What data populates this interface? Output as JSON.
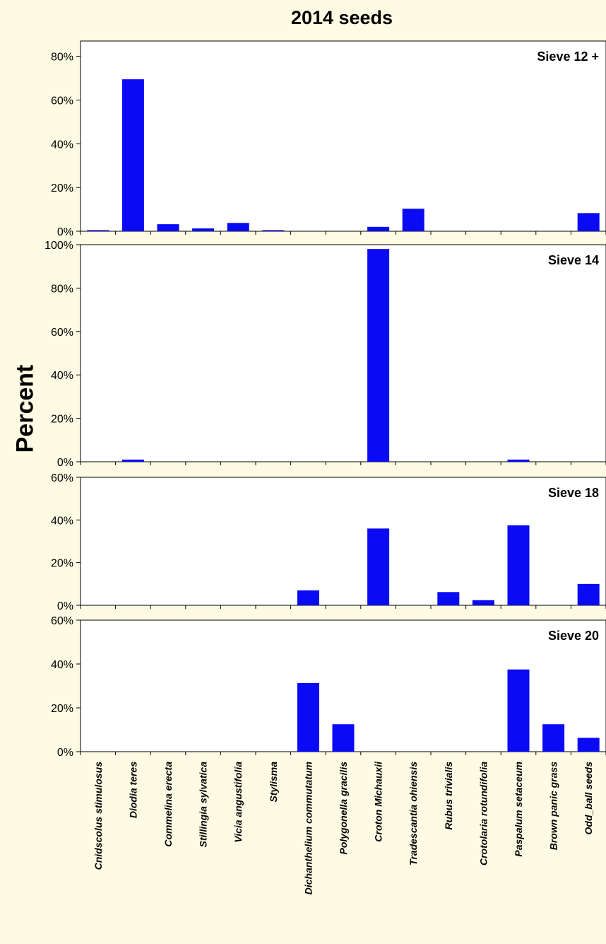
{
  "chart_data": {
    "type": "bar",
    "title": "2014 seeds",
    "ylabel": "Percent",
    "categories": [
      "Cnidscolus stimulosus",
      "Diodia teres",
      "Commelina erecta",
      "Stillingia sylvatica",
      "Vicia angustifolia",
      "Stylisma",
      "Dichanthelium commutatum",
      "Polygonella gracilis",
      "Croton Michauxii",
      "Tradescantia ohiensis",
      "Rubus trivialis",
      "Crotolaria rotundifolia",
      "Paspalum setaceum",
      "Brown panic grass",
      "Odd_ball seeds"
    ],
    "bar_color": "#0a0af5",
    "panels": [
      {
        "name": "Sieve 12 +",
        "ylim": [
          0,
          87
        ],
        "yticks": [
          0,
          20,
          40,
          60,
          80
        ],
        "tick_labels": [
          "0%",
          "20%",
          "40%",
          "60%",
          "80%"
        ],
        "values": [
          0.5,
          69.5,
          3.2,
          1.3,
          3.8,
          0.5,
          0,
          0,
          2,
          10.3,
          0,
          0,
          0,
          0,
          8.3
        ]
      },
      {
        "name": "Sieve 14",
        "ylim": [
          0,
          100
        ],
        "yticks": [
          0,
          20,
          40,
          60,
          80,
          100
        ],
        "tick_labels": [
          "0%",
          "20%",
          "40%",
          "60%",
          "80%",
          "100%"
        ],
        "values": [
          0,
          1,
          0,
          0,
          0,
          0,
          0,
          0,
          98,
          0,
          0,
          0,
          1,
          0,
          0
        ]
      },
      {
        "name": "Sieve 18",
        "ylim": [
          0,
          60
        ],
        "yticks": [
          0,
          20,
          40,
          60
        ],
        "tick_labels": [
          "0%",
          "20%",
          "40%",
          "60%"
        ],
        "values": [
          0,
          0,
          0,
          0,
          0,
          0,
          7,
          0,
          36,
          0,
          6.2,
          2.4,
          37.5,
          0,
          10
        ]
      },
      {
        "name": "Sieve 20",
        "ylim": [
          0,
          60
        ],
        "yticks": [
          0,
          20,
          40,
          60
        ],
        "tick_labels": [
          "0%",
          "20%",
          "40%",
          "60%"
        ],
        "values": [
          0,
          0,
          0,
          0,
          0,
          0,
          31.3,
          12.5,
          0,
          0,
          0,
          0,
          37.5,
          12.5,
          6.3
        ]
      }
    ]
  }
}
